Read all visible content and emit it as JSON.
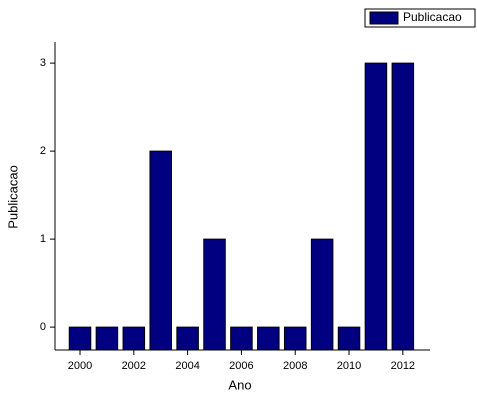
{
  "chart_data": {
    "type": "bar",
    "x": [
      2000,
      2001,
      2002,
      2003,
      2004,
      2005,
      2006,
      2007,
      2008,
      2009,
      2010,
      2011,
      2012
    ],
    "series": [
      {
        "name": "Publicacao",
        "color": "#000080",
        "values": [
          0,
          0,
          0,
          2,
          0,
          1,
          0,
          0,
          0,
          1,
          0,
          3,
          3
        ]
      }
    ],
    "x_label": "Ano",
    "y_label": "Publicacao",
    "xlim": [
      1999.07,
      2013.01
    ],
    "xticks": [
      2000,
      2002,
      2004,
      2006,
      2008,
      2010,
      2012
    ],
    "ylim": [
      -0.26,
      3.24
    ],
    "yticks": [
      0,
      1,
      2,
      3
    ],
    "legend": "top-right"
  }
}
